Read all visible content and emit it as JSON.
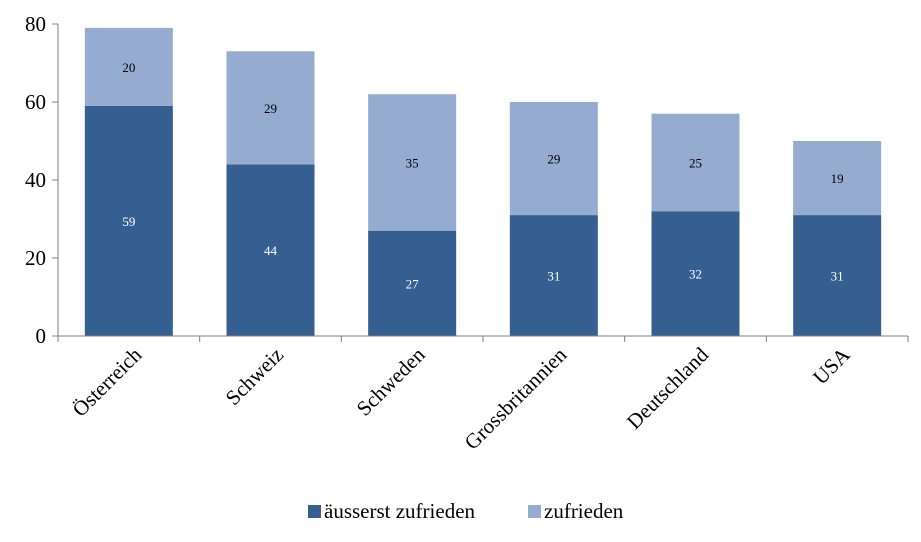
{
  "chart_data": {
    "type": "bar",
    "stacked": true,
    "categories": [
      "Österreich",
      "Schweiz",
      "Schweden",
      "Grossbritannien",
      "Deutschland",
      "USA"
    ],
    "series": [
      {
        "name": "äusserst zufrieden",
        "values": [
          59,
          44,
          27,
          31,
          32,
          31
        ],
        "color": "#355F91",
        "label_color": "#ffffff"
      },
      {
        "name": "zufrieden",
        "values": [
          20,
          29,
          35,
          29,
          25,
          19
        ],
        "color": "#95ABD0",
        "label_color": "#000000"
      }
    ],
    "ylim": [
      0,
      80
    ],
    "yticks": [
      0,
      20,
      40,
      60,
      80
    ],
    "grid": false,
    "legend": "bottom",
    "axis_color": "#7f7f7f"
  }
}
